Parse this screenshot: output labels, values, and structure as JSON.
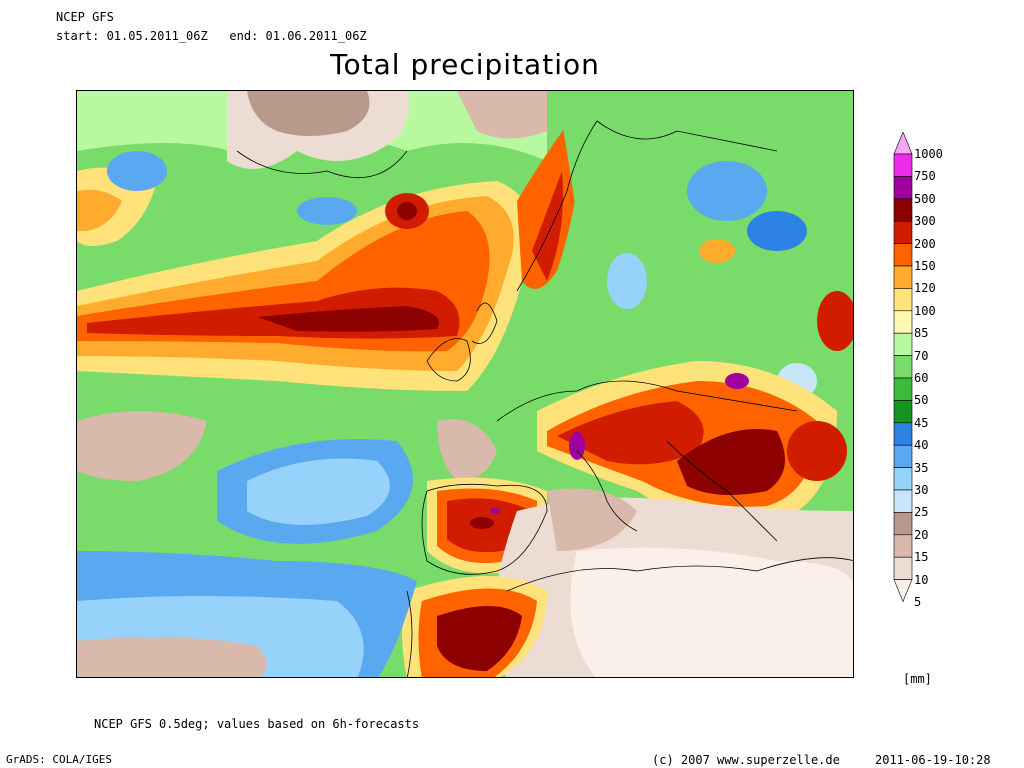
{
  "header": {
    "model": "NCEP GFS",
    "period": "start: 01.05.2011_06Z   end: 01.06.2011_06Z",
    "title": "Total precipitation"
  },
  "legend": {
    "unit": "[mm]",
    "levels": [
      {
        "value": "1000",
        "color": "#f7a7f7"
      },
      {
        "value": "750",
        "color": "#ee2bee"
      },
      {
        "value": "500",
        "color": "#a000a0"
      },
      {
        "value": "300",
        "color": "#8c0000"
      },
      {
        "value": "200",
        "color": "#d21c00"
      },
      {
        "value": "150",
        "color": "#ff6300"
      },
      {
        "value": "120",
        "color": "#ffac2e"
      },
      {
        "value": "100",
        "color": "#ffe27a"
      },
      {
        "value": "85",
        "color": "#fff9b0"
      },
      {
        "value": "70",
        "color": "#b8f9a0"
      },
      {
        "value": "60",
        "color": "#79dc6a"
      },
      {
        "value": "50",
        "color": "#3cba3c"
      },
      {
        "value": "45",
        "color": "#14961e"
      },
      {
        "value": "40",
        "color": "#2d82e6"
      },
      {
        "value": "35",
        "color": "#5aa8f0"
      },
      {
        "value": "30",
        "color": "#96d2fa"
      },
      {
        "value": "25",
        "color": "#c8e6fa"
      },
      {
        "value": "20",
        "color": "#b79a8c"
      },
      {
        "value": "15",
        "color": "#d8b9ab"
      },
      {
        "value": "10",
        "color": "#ecdcd3"
      },
      {
        "value": "5",
        "color": "#faefe9"
      }
    ]
  },
  "footer": {
    "note": "NCEP GFS 0.5deg; values based on 6h-forecasts",
    "software": "GrADS: COLA/IGES",
    "copyright": "(c) 2007 www.superzelle.de",
    "timestamp": "2011-06-19-10:28"
  }
}
